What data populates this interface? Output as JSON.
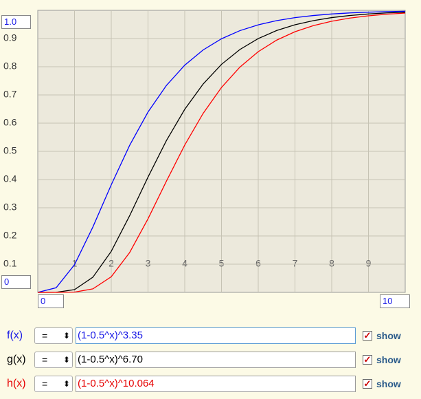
{
  "chart_data": {
    "type": "line",
    "x": [
      0,
      0.5,
      1,
      1.5,
      2,
      2.5,
      3,
      3.5,
      4,
      4.5,
      5,
      5.5,
      6,
      6.5,
      7,
      7.5,
      8,
      8.5,
      9,
      9.5,
      10
    ],
    "series": [
      {
        "color": "#0000ff",
        "values": [
          0,
          0.0164,
          0.0981,
          0.2319,
          0.3815,
          0.5212,
          0.6393,
          0.7334,
          0.8056,
          0.8595,
          0.8991,
          0.9279,
          0.9486,
          0.9635,
          0.9741,
          0.9816,
          0.987,
          0.9908,
          0.9935,
          0.9954,
          0.9967
        ]
      },
      {
        "color": "#000000",
        "values": [
          0,
          0.0003,
          0.0096,
          0.0538,
          0.1455,
          0.2717,
          0.4087,
          0.5379,
          0.649,
          0.7387,
          0.8084,
          0.861,
          0.8998,
          0.9283,
          0.9489,
          0.9635,
          0.9742,
          0.9817,
          0.987,
          0.9908,
          0.9935
        ]
      },
      {
        "color": "#ff0000",
        "values": [
          0,
          0,
          0.0009,
          0.0124,
          0.0553,
          0.1412,
          0.2608,
          0.394,
          0.5223,
          0.6345,
          0.7265,
          0.7986,
          0.8534,
          0.8942,
          0.9241,
          0.9458,
          0.9614,
          0.9725,
          0.9805,
          0.9862,
          0.9902
        ]
      }
    ],
    "xlim": [
      0,
      10
    ],
    "ylim": [
      0,
      1
    ],
    "xticks": [
      1,
      2,
      3,
      4,
      5,
      6,
      7,
      8,
      9
    ],
    "yticks": [
      0.1,
      0.2,
      0.3,
      0.4,
      0.5,
      0.6,
      0.7,
      0.8,
      0.9
    ],
    "grid": true
  },
  "controls": {
    "y_max": "1.0",
    "y_min": "0",
    "x_min": "0",
    "x_max": "10",
    "rows": [
      {
        "label": "f(x)",
        "color": "#1a1ae6",
        "operator": "=",
        "expression": "(1-0.5^x)^3.35",
        "checkbox": "show"
      },
      {
        "label": "g(x)",
        "color": "#000000",
        "operator": "=",
        "expression": "(1-0.5^x)^6.70",
        "checkbox": "show"
      },
      {
        "label": "h(x)",
        "color": "#e60000",
        "operator": "=",
        "expression": "(1-0.5^x)^10.064",
        "checkbox": "show"
      }
    ]
  }
}
